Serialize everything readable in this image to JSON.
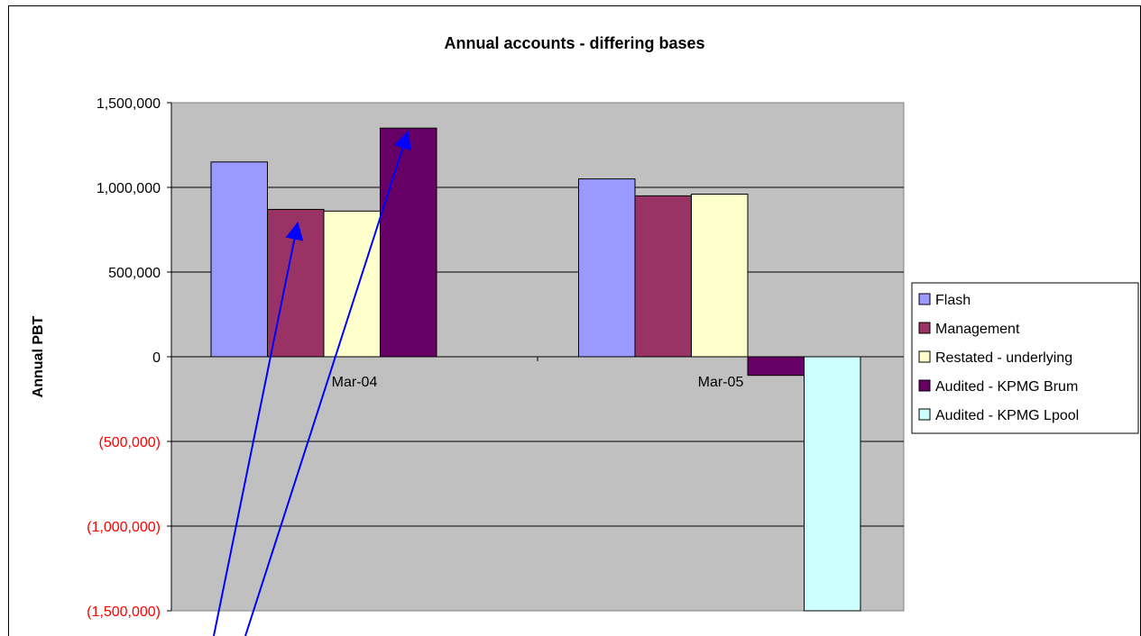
{
  "chart_data": {
    "type": "bar",
    "title": "Annual accounts - differing bases",
    "ylabel": "Annual PBT",
    "xlabel": "",
    "categories": [
      "Mar-04",
      "Mar-05"
    ],
    "ylim": [
      -1500000,
      1500000
    ],
    "yticks": [
      {
        "value": 1500000,
        "label": "1,500,000"
      },
      {
        "value": 1000000,
        "label": "1,000,000"
      },
      {
        "value": 500000,
        "label": "500,000"
      },
      {
        "value": 0,
        "label": "0"
      },
      {
        "value": -500000,
        "label": "(500,000)"
      },
      {
        "value": -1000000,
        "label": "(1,000,000)"
      },
      {
        "value": -1500000,
        "label": "(1,500,000)"
      }
    ],
    "grid": true,
    "legend_position": "right",
    "series": [
      {
        "name": "Flash",
        "color": "#9999ff",
        "values": [
          1150000,
          1050000
        ]
      },
      {
        "name": "Management",
        "color": "#993366",
        "values": [
          870000,
          950000
        ]
      },
      {
        "name": "Restated - underlying",
        "color": "#ffffcc",
        "values": [
          860000,
          960000
        ]
      },
      {
        "name": "Audited - KPMG Brum",
        "color": "#660066",
        "values": [
          1350000,
          -110000
        ]
      },
      {
        "name": "Audited - KPMG Lpool",
        "color": "#ccffff",
        "values": [
          null,
          -1500000
        ]
      }
    ],
    "colors": {
      "plot_background": "#c0c0c0",
      "negative_tick": "#ff0000",
      "positive_tick": "#000000",
      "annotation_arrow": "#0000ff"
    }
  }
}
